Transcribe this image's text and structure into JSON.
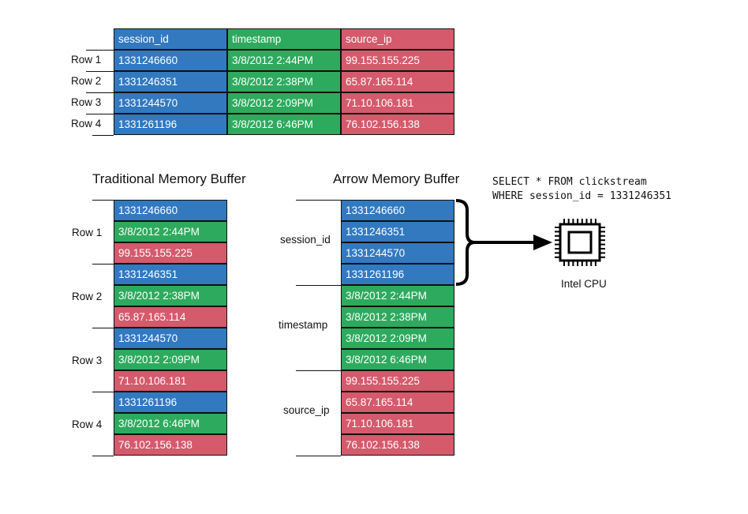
{
  "colors": {
    "session_id": "#3279c0",
    "timestamp": "#2eaa5e",
    "source_ip": "#d45a6c"
  },
  "table": {
    "columns": [
      "session_id",
      "timestamp",
      "source_ip"
    ],
    "rows": [
      {
        "label": "Row 1",
        "session_id": "1331246660",
        "timestamp": "3/8/2012  2:44PM",
        "source_ip": "99.155.155.225"
      },
      {
        "label": "Row 2",
        "session_id": "1331246351",
        "timestamp": "3/8/2012  2:38PM",
        "source_ip": "65.87.165.114"
      },
      {
        "label": "Row 3",
        "session_id": "1331244570",
        "timestamp": "3/8/2012  2:09PM",
        "source_ip": "71.10.106.181"
      },
      {
        "label": "Row 4",
        "session_id": "1331261196",
        "timestamp": "3/8/2012  6:46PM",
        "source_ip": "76.102.156.138"
      }
    ]
  },
  "traditional": {
    "title": "Traditional Memory Buffer"
  },
  "arrow": {
    "title": "Arrow Memory Buffer"
  },
  "query": {
    "line1": "SELECT * FROM clickstream",
    "line2": "WHERE session_id = 1331246351"
  },
  "cpu": {
    "label": "Intel CPU",
    "icon": "cpu-chip-icon"
  }
}
